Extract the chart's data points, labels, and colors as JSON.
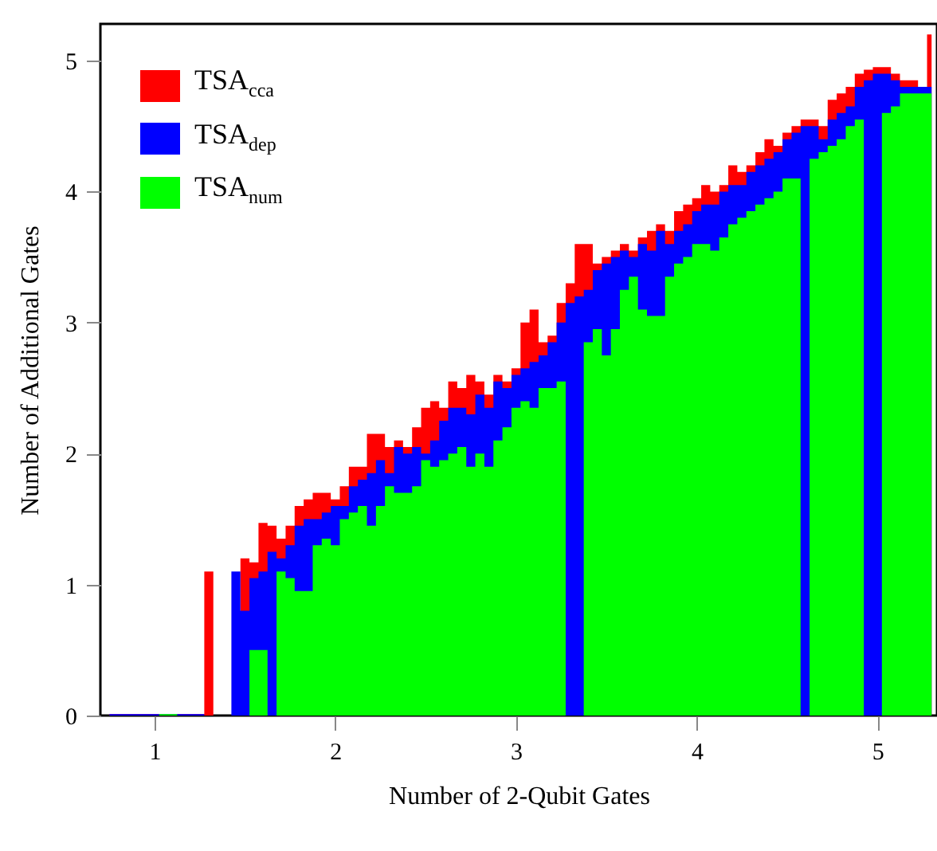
{
  "chart_data": {
    "type": "area",
    "xlabel": "Number of 2-Qubit Gates",
    "ylabel": "Number of Additional Gates",
    "x": [
      0.75,
      0.8,
      0.85,
      0.9,
      0.95,
      1.0,
      1.05,
      1.1,
      1.15,
      1.2,
      1.25,
      1.3,
      1.35,
      1.4,
      1.45,
      1.5,
      1.55,
      1.6,
      1.65,
      1.7,
      1.75,
      1.8,
      1.85,
      1.9,
      1.95,
      2.0,
      2.05,
      2.1,
      2.15,
      2.2,
      2.25,
      2.3,
      2.35,
      2.4,
      2.45,
      2.5,
      2.55,
      2.6,
      2.65,
      2.7,
      2.75,
      2.8,
      2.85,
      2.9,
      2.95,
      3.0,
      3.05,
      3.1,
      3.15,
      3.2,
      3.25,
      3.3,
      3.35,
      3.4,
      3.45,
      3.5,
      3.55,
      3.6,
      3.65,
      3.7,
      3.75,
      3.8,
      3.85,
      3.9,
      3.95,
      4.0,
      4.05,
      4.1,
      4.15,
      4.2,
      4.25,
      4.3,
      4.35,
      4.4,
      4.45,
      4.5,
      4.55,
      4.6,
      4.65,
      4.7,
      4.75,
      4.8,
      4.85,
      4.9,
      4.95,
      5.0,
      5.05,
      5.1,
      5.15,
      5.2,
      5.25,
      5.3
    ],
    "series": [
      {
        "name": "TSA$_{cca}$",
        "color": "#ff0000",
        "values": [
          0.01,
          0.01,
          0.01,
          0.01,
          0.01,
          0.01,
          0.01,
          0.01,
          0.01,
          0.01,
          0.01,
          1.1,
          0,
          0,
          0,
          1.2,
          1.17,
          1.47,
          1.45,
          1.35,
          1.45,
          1.6,
          1.65,
          1.7,
          1.7,
          1.65,
          1.75,
          1.9,
          1.9,
          2.15,
          2.15,
          2.05,
          2.1,
          2.05,
          2.2,
          2.35,
          2.4,
          2.35,
          2.55,
          2.5,
          2.6,
          2.55,
          2.45,
          2.6,
          2.55,
          2.65,
          3.0,
          3.1,
          2.85,
          2.9,
          3.15,
          3.3,
          3.6,
          3.6,
          3.45,
          3.5,
          3.55,
          3.6,
          3.55,
          3.65,
          3.7,
          3.75,
          3.7,
          3.85,
          3.9,
          3.95,
          4.05,
          4.0,
          4.05,
          4.2,
          4.15,
          4.2,
          4.3,
          4.4,
          4.35,
          4.45,
          4.5,
          4.55,
          4.55,
          4.5,
          4.7,
          4.75,
          4.8,
          4.9,
          4.93,
          4.95,
          4.95,
          4.9,
          4.85,
          4.85,
          4.8,
          5.2
        ]
      },
      {
        "name": "TSA$_{dep}$",
        "color": "#0000ff",
        "values": [
          0.01,
          0.01,
          0.01,
          0.01,
          0.01,
          0.01,
          0.01,
          0.01,
          0.01,
          0.01,
          0.01,
          0,
          0,
          0,
          1.1,
          0.8,
          1.05,
          1.1,
          1.25,
          1.2,
          1.3,
          1.45,
          1.5,
          1.5,
          1.55,
          1.6,
          1.6,
          1.75,
          1.8,
          1.85,
          1.95,
          1.85,
          2.05,
          2.0,
          2.05,
          2.0,
          2.1,
          2.25,
          2.35,
          2.35,
          2.3,
          2.45,
          2.35,
          2.55,
          2.5,
          2.6,
          2.65,
          2.7,
          2.75,
          2.85,
          3.0,
          3.15,
          3.2,
          3.25,
          3.4,
          3.45,
          3.5,
          3.55,
          3.5,
          3.6,
          3.55,
          3.7,
          3.6,
          3.7,
          3.75,
          3.85,
          3.9,
          3.9,
          4.0,
          4.05,
          4.05,
          4.15,
          4.2,
          4.25,
          4.3,
          4.4,
          4.45,
          4.5,
          4.5,
          4.4,
          4.55,
          4.6,
          4.65,
          4.8,
          4.85,
          4.9,
          4.9,
          4.85,
          4.8,
          4.8,
          4.8,
          4.8
        ]
      },
      {
        "name": "TSA$_{num}$",
        "color": "#00ff00",
        "values": [
          0,
          0,
          0,
          0,
          0,
          0,
          0.01,
          0.01,
          0,
          0,
          0,
          0,
          0,
          0,
          0,
          0,
          0.5,
          0.5,
          0,
          1.1,
          1.05,
          0.95,
          0.95,
          1.3,
          1.35,
          1.3,
          1.5,
          1.55,
          1.6,
          1.45,
          1.6,
          1.75,
          1.7,
          1.7,
          1.75,
          1.95,
          1.9,
          1.95,
          2.0,
          2.05,
          1.9,
          2.0,
          1.9,
          2.1,
          2.2,
          2.35,
          2.4,
          2.35,
          2.5,
          2.5,
          2.55,
          0,
          0,
          2.85,
          2.95,
          2.75,
          2.95,
          3.25,
          3.35,
          3.1,
          3.05,
          3.05,
          3.35,
          3.45,
          3.5,
          3.6,
          3.6,
          3.55,
          3.65,
          3.75,
          3.8,
          3.85,
          3.9,
          3.95,
          4.0,
          4.1,
          4.1,
          0,
          4.25,
          4.3,
          4.35,
          4.4,
          4.5,
          4.55,
          0,
          0,
          4.6,
          4.65,
          4.75,
          4.75,
          4.75,
          4.75
        ]
      }
    ],
    "xlim": [
      0.7,
      5.33
    ],
    "xticks": [
      1,
      2,
      3,
      4,
      5
    ],
    "ylim": [
      0,
      5.28
    ],
    "yticks": [
      0,
      1,
      2,
      3,
      4,
      5
    ],
    "legend": "top left"
  }
}
